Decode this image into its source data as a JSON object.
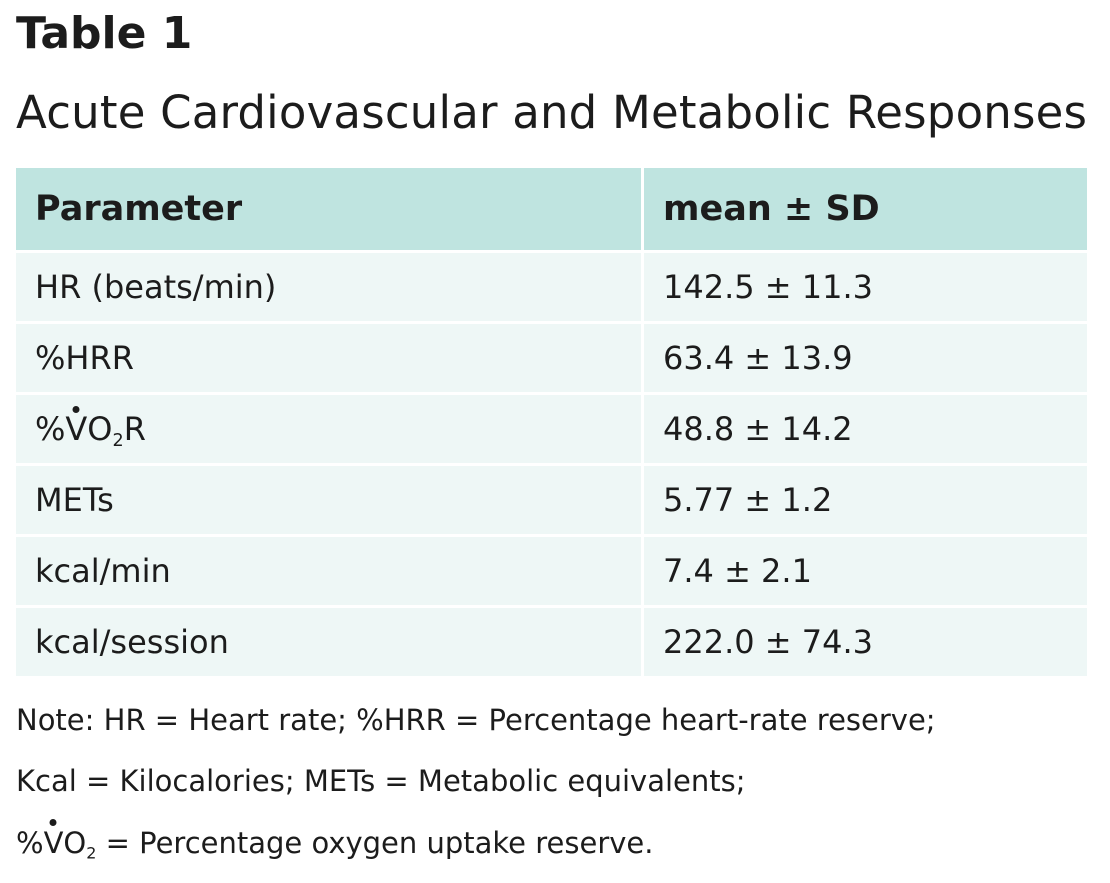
{
  "table_label": "Table 1",
  "table_title": "Acute Cardiovascular and Metabolic Responses",
  "columns": [
    "Parameter",
    "mean ± SD"
  ],
  "rows": [
    {
      "parameter": "HR (beats/min)",
      "value": "142.5 ± 11.3"
    },
    {
      "parameter": "%HRR",
      "value": "63.4 ± 13.9"
    },
    {
      "parameter_prefix": "%",
      "parameter_v": "V",
      "parameter_mid": "O",
      "parameter_sub": "2",
      "parameter_suffix": "R",
      "value": "48.8 ± 14.2"
    },
    {
      "parameter": "METs",
      "value": "5.77 ± 1.2"
    },
    {
      "parameter": "kcal/min",
      "value": "7.4 ± 2.1"
    },
    {
      "parameter": "kcal/session",
      "value": "222.0 ± 74.3"
    }
  ],
  "notes": {
    "line1": "Note: HR = Heart rate; %HRR = Percentage heart-rate reserve;",
    "line2": "Kcal = Kilocalories; METs = Metabolic equivalents;",
    "line3_prefix": "%",
    "line3_v": "V",
    "line3_mid": "O",
    "line3_sub": "2",
    "line3_suffix": " = Percentage oxygen uptake reserve."
  }
}
